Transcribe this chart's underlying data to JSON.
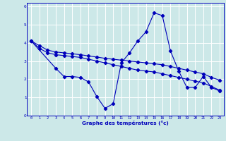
{
  "xlabel": "Graphe des températures (°c)",
  "xlim": [
    -0.5,
    23.5
  ],
  "ylim": [
    0,
    6.2
  ],
  "xticks": [
    0,
    1,
    2,
    3,
    4,
    5,
    6,
    7,
    8,
    9,
    10,
    11,
    12,
    13,
    14,
    15,
    16,
    17,
    18,
    19,
    20,
    21,
    22,
    23
  ],
  "yticks": [
    0,
    1,
    2,
    3,
    4,
    5,
    6
  ],
  "bg_color": "#cce8e8",
  "line_color": "#0000bb",
  "grid_color": "#ffffff",
  "lines": [
    {
      "x": [
        0,
        1,
        2,
        3,
        4,
        5,
        6,
        7,
        8,
        9,
        10,
        11,
        12,
        13,
        14,
        15,
        16,
        17,
        18,
        19,
        20,
        21,
        22,
        23
      ],
      "y": [
        4.1,
        3.85,
        3.6,
        3.5,
        3.45,
        3.4,
        3.35,
        3.28,
        3.22,
        3.15,
        3.1,
        3.05,
        3.0,
        2.95,
        2.9,
        2.85,
        2.8,
        2.7,
        2.6,
        2.5,
        2.4,
        2.3,
        2.1,
        1.95
      ]
    },
    {
      "x": [
        0,
        1,
        2,
        3,
        4,
        5,
        6,
        7,
        8,
        9,
        10,
        11,
        12,
        13,
        14,
        15,
        16,
        17,
        18,
        19,
        20,
        21,
        22,
        23
      ],
      "y": [
        4.1,
        3.7,
        3.45,
        3.35,
        3.3,
        3.25,
        3.2,
        3.1,
        3.0,
        2.9,
        2.8,
        2.7,
        2.6,
        2.5,
        2.45,
        2.4,
        2.3,
        2.2,
        2.1,
        2.0,
        1.9,
        1.8,
        1.6,
        1.4
      ]
    },
    {
      "x": [
        0,
        3,
        4,
        5,
        6,
        7,
        8,
        9,
        10,
        11,
        12,
        13,
        14,
        15,
        16,
        17,
        18,
        19,
        20,
        21,
        22,
        23
      ],
      "y": [
        4.1,
        2.6,
        2.15,
        2.15,
        2.1,
        1.85,
        1.05,
        0.4,
        0.65,
        2.9,
        3.45,
        4.1,
        4.6,
        5.65,
        5.5,
        3.55,
        2.45,
        1.55,
        1.55,
        2.15,
        1.55,
        1.35
      ]
    }
  ]
}
